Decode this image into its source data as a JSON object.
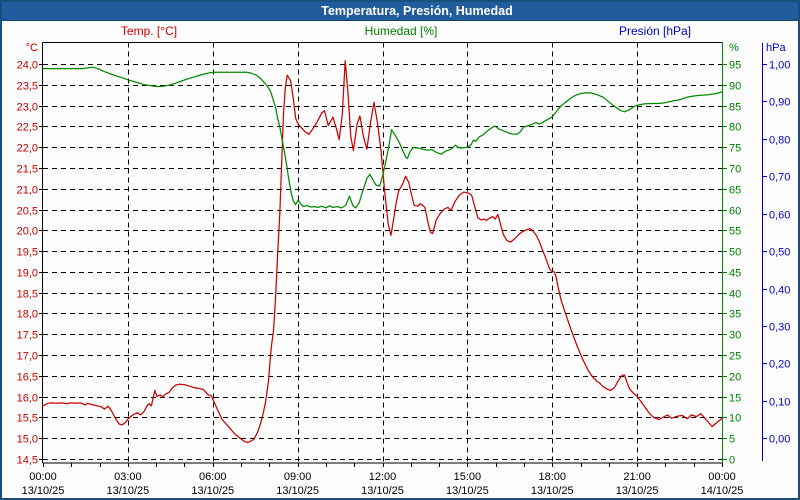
{
  "window": {
    "title": "Temperatura, Presión, Humedad"
  },
  "legend": {
    "temperature_label": "Temp. [°C]",
    "humidity_label": "Humedad [%]",
    "pressure_label": "Presión [hPa]"
  },
  "colors": {
    "temperature": "#cc0000",
    "humidity": "#008a00",
    "humidity_text": "#008000",
    "pressure": "#0000cc",
    "grid": "#000000",
    "axis": "#000000",
    "tick_text": "#000000",
    "titlebar_bg": "#1e5c94",
    "frame": "#17507f",
    "background": "#fdfdfd"
  },
  "chart_data": {
    "type": "line",
    "title": "Temperatura, Presión, Humedad",
    "grid": "dashed",
    "x_axis": {
      "range_hours": [
        0,
        24
      ],
      "major_grid_step_hours": 3,
      "minor_tick_step_hours": 1,
      "tick_times": [
        "00:00",
        "03:00",
        "06:00",
        "09:00",
        "12:00",
        "15:00",
        "18:00",
        "21:00",
        "00:00"
      ],
      "tick_dates": [
        "13/10/25",
        "13/10/25",
        "13/10/25",
        "13/10/25",
        "13/10/25",
        "13/10/25",
        "13/10/25",
        "13/10/25",
        "14/10/25"
      ]
    },
    "y_axes": {
      "temperature": {
        "side": "left",
        "unit": "°C",
        "top_value": 24.0,
        "bottom_value": 14.5,
        "step": 0.5,
        "labels": [
          "24,0",
          "23,5",
          "23,0",
          "22,5",
          "22,0",
          "21,5",
          "21,0",
          "20,5",
          "20,0",
          "19,5",
          "19,0",
          "18,5",
          "18,0",
          "17,5",
          "17,0",
          "16,5",
          "16,0",
          "15,5",
          "15,0",
          "14,5"
        ]
      },
      "humidity": {
        "side": "right",
        "unit": "%",
        "top_value": 95,
        "bottom_value": 0,
        "step": 5,
        "labels": [
          "95",
          "90",
          "85",
          "80",
          "75",
          "70",
          "65",
          "60",
          "55",
          "50",
          "45",
          "40",
          "35",
          "30",
          "25",
          "20",
          "15",
          "10",
          "5",
          "0"
        ]
      },
      "pressure": {
        "side": "right_outer",
        "unit": "hPa",
        "top_value": 1.0,
        "bottom_value": 0.0,
        "step": 0.1,
        "labels": [
          "1,00",
          "0,90",
          "0,80",
          "0,70",
          "0,60",
          "0,50",
          "0,40",
          "0,30",
          "0,20",
          "0,10",
          "0,00"
        ]
      }
    },
    "series": [
      {
        "name": "Temp. [°C]",
        "axis": "temperature",
        "color": "#cc0000",
        "x_hours": [
          0.0,
          0.17,
          0.33,
          0.5,
          0.67,
          0.83,
          1.0,
          1.17,
          1.33,
          1.5,
          1.58,
          1.75,
          1.92,
          2.07,
          2.17,
          2.3,
          2.42,
          2.58,
          2.7,
          2.8,
          2.92,
          3.0,
          3.17,
          3.33,
          3.45,
          3.58,
          3.67,
          3.75,
          3.83,
          3.95,
          4.03,
          4.13,
          4.25,
          4.33,
          4.45,
          4.58,
          4.7,
          4.83,
          5.0,
          5.17,
          5.33,
          5.5,
          5.67,
          5.83,
          5.95,
          6.17,
          6.33,
          6.53,
          6.77,
          7.0,
          7.15,
          7.25,
          7.45,
          7.58,
          7.68,
          7.78,
          7.87,
          7.97,
          8.03,
          8.08,
          8.15,
          8.22,
          8.3,
          8.37,
          8.44,
          8.5,
          8.56,
          8.63,
          8.75,
          8.85,
          8.93,
          9.02,
          9.12,
          9.25,
          9.4,
          9.55,
          9.7,
          9.85,
          9.95,
          10.08,
          10.25,
          10.38,
          10.47,
          10.58,
          10.68,
          10.78,
          10.88,
          10.97,
          11.1,
          11.2,
          11.33,
          11.45,
          11.58,
          11.7,
          11.83,
          11.95,
          12.08,
          12.2,
          12.3,
          12.4,
          12.48,
          12.57,
          12.7,
          12.82,
          12.93,
          13.02,
          13.12,
          13.25,
          13.33,
          13.42,
          13.5,
          13.62,
          13.7,
          13.77,
          13.9,
          14.05,
          14.2,
          14.32,
          14.42,
          14.57,
          14.72,
          14.87,
          15.02,
          15.15,
          15.25,
          15.37,
          15.48,
          15.58,
          15.68,
          15.8,
          15.9,
          15.98,
          16.08,
          16.17,
          16.27,
          16.4,
          16.53,
          16.68,
          16.82,
          16.95,
          17.08,
          17.2,
          17.3,
          17.42,
          17.55,
          17.67,
          17.8,
          17.9,
          17.97,
          18.07,
          18.13,
          18.25,
          18.33,
          18.47,
          18.67,
          18.87,
          19.07,
          19.27,
          19.43,
          19.57,
          19.67,
          19.8,
          19.93,
          20.07,
          20.2,
          20.33,
          20.47,
          20.55,
          20.72,
          20.87,
          21.0,
          21.2,
          21.4,
          21.58,
          21.77,
          21.93,
          22.07,
          22.22,
          22.37,
          22.58,
          22.78,
          22.92,
          23.1,
          23.25,
          23.45,
          23.65,
          23.85,
          24.0
        ],
        "values": [
          15.78,
          15.84,
          15.85,
          15.84,
          15.85,
          15.83,
          15.85,
          15.84,
          15.85,
          15.8,
          15.84,
          15.8,
          15.78,
          15.75,
          15.7,
          15.77,
          15.66,
          15.45,
          15.34,
          15.32,
          15.38,
          15.46,
          15.56,
          15.61,
          15.56,
          15.65,
          15.77,
          15.83,
          15.78,
          16.15,
          16.0,
          16.04,
          16.0,
          16.06,
          16.1,
          16.22,
          16.28,
          16.3,
          16.29,
          16.25,
          16.22,
          16.2,
          16.17,
          16.05,
          16.02,
          15.68,
          15.45,
          15.3,
          15.11,
          14.98,
          14.91,
          14.9,
          14.97,
          15.14,
          15.33,
          15.59,
          15.89,
          16.37,
          16.89,
          17.25,
          17.6,
          18.4,
          19.5,
          20.4,
          21.7,
          22.8,
          23.4,
          23.73,
          23.6,
          23.15,
          22.7,
          22.55,
          22.48,
          22.38,
          22.31,
          22.45,
          22.62,
          22.82,
          22.88,
          22.52,
          22.72,
          22.42,
          22.18,
          22.8,
          24.08,
          23.3,
          22.25,
          21.92,
          22.54,
          22.75,
          22.25,
          21.95,
          22.6,
          23.08,
          22.55,
          21.9,
          20.9,
          20.15,
          19.88,
          20.3,
          20.65,
          20.94,
          21.1,
          21.3,
          21.15,
          20.87,
          20.6,
          20.58,
          20.64,
          20.6,
          20.55,
          20.15,
          19.95,
          19.92,
          20.25,
          20.42,
          20.52,
          20.55,
          20.48,
          20.7,
          20.85,
          20.92,
          20.9,
          20.85,
          20.6,
          20.3,
          20.25,
          20.27,
          20.24,
          20.3,
          20.33,
          20.27,
          20.38,
          20.15,
          19.9,
          19.75,
          19.72,
          19.8,
          19.9,
          19.97,
          20.01,
          20.04,
          20.0,
          19.9,
          19.72,
          19.5,
          19.28,
          19.08,
          19.02,
          19.0,
          18.9,
          18.5,
          18.28,
          18.0,
          17.6,
          17.23,
          16.91,
          16.63,
          16.47,
          16.37,
          16.33,
          16.24,
          16.18,
          16.15,
          16.22,
          16.38,
          16.51,
          16.52,
          16.2,
          16.08,
          16.01,
          15.82,
          15.63,
          15.5,
          15.45,
          15.51,
          15.56,
          15.48,
          15.52,
          15.55,
          15.47,
          15.56,
          15.52,
          15.59,
          15.44,
          15.28,
          15.4,
          15.47
        ]
      },
      {
        "name": "Humedad [%]",
        "axis": "humidity",
        "color": "#008a00",
        "x_hours": [
          0.0,
          0.35,
          0.7,
          1.05,
          1.4,
          1.6,
          1.75,
          1.88,
          2.0,
          2.2,
          2.4,
          2.6,
          2.8,
          3.0,
          3.2,
          3.4,
          3.6,
          3.8,
          4.0,
          4.15,
          4.3,
          4.5,
          4.7,
          4.9,
          5.1,
          5.3,
          5.5,
          5.7,
          5.9,
          6.1,
          6.4,
          6.7,
          7.0,
          7.2,
          7.35,
          7.55,
          7.72,
          7.88,
          8.03,
          8.12,
          8.22,
          8.3,
          8.38,
          8.47,
          8.56,
          8.63,
          8.7,
          8.78,
          8.85,
          8.93,
          9.02,
          9.12,
          9.22,
          9.33,
          9.45,
          9.58,
          9.72,
          9.85,
          10.0,
          10.13,
          10.25,
          10.4,
          10.55,
          10.7,
          10.83,
          10.95,
          11.05,
          11.17,
          11.33,
          11.45,
          11.55,
          11.67,
          11.78,
          11.9,
          12.0,
          12.1,
          12.22,
          12.32,
          12.48,
          12.6,
          12.7,
          12.82,
          12.88,
          12.98,
          13.08,
          13.25,
          13.42,
          13.58,
          13.75,
          13.92,
          14.07,
          14.25,
          14.42,
          14.58,
          14.68,
          14.8,
          15.0,
          15.13,
          15.22,
          15.3,
          15.42,
          15.55,
          15.67,
          15.83,
          15.97,
          16.13,
          16.33,
          16.5,
          16.63,
          16.78,
          16.9,
          16.98,
          17.12,
          17.25,
          17.42,
          17.55,
          17.65,
          17.82,
          18.0,
          18.15,
          18.3,
          18.45,
          18.62,
          18.8,
          19.0,
          19.2,
          19.4,
          19.6,
          19.8,
          20.0,
          20.2,
          20.4,
          20.55,
          20.7,
          20.88,
          21.0,
          21.25,
          21.5,
          21.75,
          22.0,
          22.25,
          22.5,
          22.75,
          23.0,
          23.25,
          23.5,
          23.75,
          24.0
        ],
        "values": [
          93.9,
          93.9,
          93.9,
          93.9,
          93.9,
          94.1,
          94.2,
          94.0,
          93.7,
          93.1,
          92.6,
          92.1,
          91.7,
          91.2,
          90.8,
          90.4,
          90.0,
          89.8,
          89.6,
          89.6,
          89.7,
          90.0,
          90.4,
          90.9,
          91.4,
          91.8,
          92.2,
          92.6,
          92.9,
          93.0,
          93.0,
          93.0,
          93.0,
          93.0,
          92.8,
          92.3,
          91.3,
          90.1,
          88.6,
          86.8,
          84.5,
          81.8,
          79.5,
          76.2,
          72.8,
          69.8,
          66.8,
          63.8,
          62.0,
          61.2,
          62.3,
          61.2,
          60.7,
          61.0,
          60.6,
          60.7,
          60.5,
          60.8,
          60.4,
          60.9,
          60.5,
          60.7,
          60.4,
          61.0,
          63.2,
          61.0,
          60.4,
          61.5,
          65.0,
          67.5,
          68.5,
          67.0,
          65.8,
          65.7,
          68.0,
          71.0,
          75.0,
          79.2,
          77.5,
          76.0,
          74.4,
          72.6,
          72.3,
          74.0,
          74.9,
          74.8,
          74.5,
          74.3,
          74.4,
          73.7,
          73.3,
          74.1,
          74.5,
          75.5,
          74.9,
          74.8,
          75.0,
          75.6,
          76.7,
          76.4,
          77.5,
          77.9,
          78.7,
          79.5,
          80.1,
          79.3,
          78.8,
          78.3,
          78.1,
          78.2,
          78.9,
          79.8,
          80.1,
          80.4,
          80.9,
          80.6,
          80.9,
          81.6,
          82.3,
          83.6,
          84.8,
          85.7,
          86.6,
          87.4,
          87.9,
          88.1,
          88.0,
          87.6,
          87.0,
          85.9,
          84.8,
          83.9,
          83.5,
          83.9,
          84.7,
          85.1,
          85.4,
          85.5,
          85.5,
          85.7,
          86.1,
          86.4,
          87.0,
          87.3,
          87.5,
          87.6,
          87.8,
          88.3
        ]
      },
      {
        "name": "Presión [hPa]",
        "axis": "pressure",
        "color": "#0000cc",
        "x_hours": [],
        "values": []
      }
    ]
  }
}
